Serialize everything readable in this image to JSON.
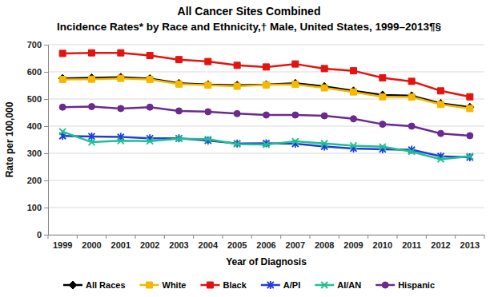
{
  "chart_data": {
    "type": "line",
    "title": "All Cancer Sites Combined",
    "subtitle": "Incidence Rates* by Race and Ethnicity,† Male, United States, 1999–2013¶§",
    "x_label": "Year of Diagnosis",
    "y_label": "Rate per 100,000",
    "categories": [
      "1999",
      "2000",
      "2001",
      "2002",
      "2003",
      "2004",
      "2005",
      "2006",
      "2007",
      "2008",
      "2009",
      "2010",
      "2011",
      "2012",
      "2013"
    ],
    "ylim": [
      0,
      700
    ],
    "yticks": [
      0,
      100,
      200,
      300,
      400,
      500,
      600,
      700
    ],
    "grid": true,
    "legend": "bottom",
    "series": [
      {
        "name": "All Races",
        "color": "#000000",
        "marker": "diamond",
        "values": [
          576,
          578,
          580,
          575,
          558,
          553,
          551,
          553,
          558,
          546,
          530,
          515,
          512,
          484,
          470
        ]
      },
      {
        "name": "White",
        "color": "#f5b800",
        "marker": "square",
        "values": [
          572,
          573,
          576,
          572,
          555,
          551,
          547,
          552,
          554,
          541,
          526,
          508,
          507,
          480,
          465
        ]
      },
      {
        "name": "Black",
        "color": "#e3140f",
        "marker": "square",
        "values": [
          668,
          670,
          670,
          660,
          645,
          638,
          624,
          618,
          629,
          612,
          604,
          578,
          565,
          530,
          508
        ]
      },
      {
        "name": "A/PI",
        "color": "#1f3fd6",
        "marker": "asterisk",
        "values": [
          364,
          362,
          360,
          355,
          355,
          347,
          336,
          337,
          335,
          325,
          318,
          315,
          313,
          289,
          285
        ]
      },
      {
        "name": "AI/AN",
        "color": "#1fbf8f",
        "marker": "x",
        "values": [
          380,
          341,
          346,
          345,
          354,
          352,
          334,
          332,
          344,
          336,
          328,
          324,
          306,
          278,
          289
        ]
      },
      {
        "name": "Hispanic",
        "color": "#6a2a8e",
        "marker": "circle",
        "values": [
          470,
          472,
          465,
          470,
          456,
          453,
          446,
          441,
          441,
          438,
          427,
          407,
          400,
          373,
          365
        ]
      }
    ]
  }
}
